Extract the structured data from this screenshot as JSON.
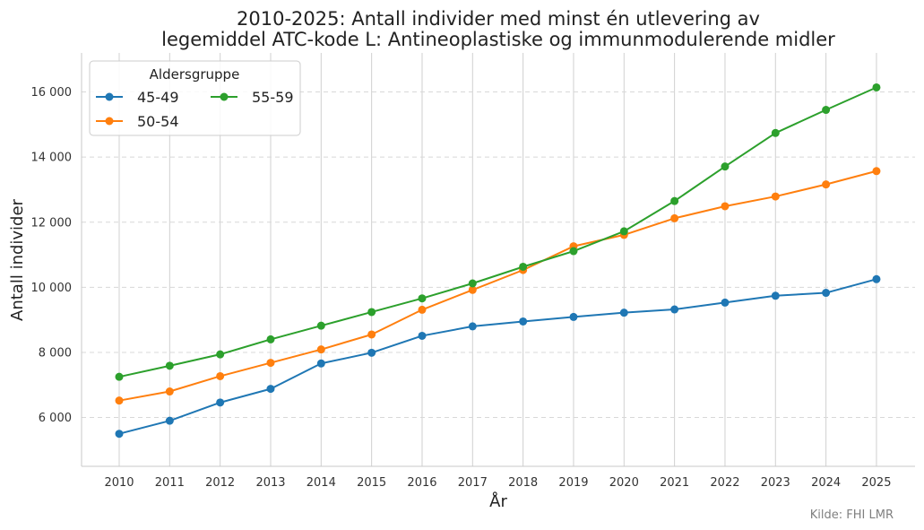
{
  "chart_data": {
    "type": "line",
    "title_lines": [
      "2010-2025: Antall individer med minst én utlevering av",
      "legemiddel ATC-kode L: Antineoplastiske og immunmodulerende midler"
    ],
    "xlabel": "År",
    "ylabel": "Antall individer",
    "x": [
      2010,
      2011,
      2012,
      2013,
      2014,
      2015,
      2016,
      2017,
      2018,
      2019,
      2020,
      2021,
      2022,
      2023,
      2024,
      2025
    ],
    "x_tick_labels": [
      "2010",
      "2011",
      "2012",
      "2013",
      "2014",
      "2015",
      "2016",
      "2017",
      "2018",
      "2019",
      "2020",
      "2021",
      "2022",
      "2023",
      "2024",
      "2025"
    ],
    "ylim": [
      4500,
      17200
    ],
    "y_ticks": [
      6000,
      8000,
      10000,
      12000,
      14000,
      16000
    ],
    "y_tick_labels": [
      "6 000",
      "8 000",
      "10 000",
      "12 000",
      "14 000",
      "16 000"
    ],
    "grid": {
      "x": "solid",
      "y": "dashed"
    },
    "legend": {
      "title": "Aldersgruppe",
      "placement": "top-left",
      "columns": 2
    },
    "series": [
      {
        "name": "45-49",
        "color": "#1f77b4",
        "values": [
          5500,
          5900,
          6460,
          6880,
          7660,
          7990,
          8510,
          8800,
          8950,
          9090,
          9220,
          9320,
          9530,
          9740,
          9830,
          10250
        ]
      },
      {
        "name": "50-54",
        "color": "#ff7f0e",
        "values": [
          6520,
          6800,
          7270,
          7680,
          8090,
          8550,
          9310,
          9920,
          10530,
          11260,
          11610,
          12120,
          12490,
          12790,
          13160,
          13570
        ]
      },
      {
        "name": "55-59",
        "color": "#2ca02c",
        "values": [
          7250,
          7590,
          7940,
          8400,
          8820,
          9240,
          9660,
          10120,
          10630,
          11110,
          11720,
          12650,
          13710,
          14740,
          15450,
          16140
        ]
      }
    ],
    "source": "Kilde: FHI LMR"
  }
}
